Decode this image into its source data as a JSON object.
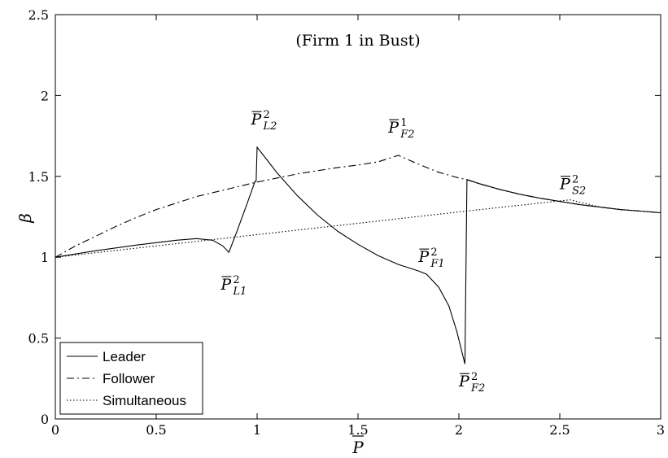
{
  "chart_data": {
    "type": "line",
    "title": "",
    "subtitle": "(Firm 1 in Bust)",
    "xlabel": "P",
    "ylabel": "β",
    "xlim": [
      0,
      3
    ],
    "ylim": [
      0,
      2.5
    ],
    "x_ticks": [
      0,
      0.5,
      1,
      1.5,
      2,
      2.5,
      3
    ],
    "x_tick_labels": [
      "0",
      "0.5",
      "1",
      "1.5",
      "2",
      "2.5",
      "3"
    ],
    "y_ticks": [
      0,
      0.5,
      1,
      1.5,
      2,
      2.5
    ],
    "y_tick_labels": [
      "0",
      "0.5",
      "1",
      "1.5",
      "2",
      "2.5"
    ],
    "grid": false,
    "legend_position": "bottom-left",
    "series": [
      {
        "name": "Leader",
        "line_style": "solid",
        "color": "#000000",
        "points": [
          [
            0,
            1.0
          ],
          [
            0.2,
            1.04
          ],
          [
            0.4,
            1.075
          ],
          [
            0.6,
            1.105
          ],
          [
            0.7,
            1.115
          ],
          [
            0.78,
            1.105
          ],
          [
            0.83,
            1.07
          ],
          [
            0.86,
            1.03
          ],
          [
            0.9,
            1.16
          ],
          [
            0.95,
            1.33
          ],
          [
            0.99,
            1.47
          ],
          [
            0.995,
            1.47
          ],
          [
            1.0,
            1.68
          ],
          [
            1.05,
            1.6
          ],
          [
            1.1,
            1.52
          ],
          [
            1.2,
            1.38
          ],
          [
            1.3,
            1.26
          ],
          [
            1.4,
            1.16
          ],
          [
            1.5,
            1.08
          ],
          [
            1.6,
            1.01
          ],
          [
            1.7,
            0.955
          ],
          [
            1.8,
            0.915
          ],
          [
            1.84,
            0.895
          ],
          [
            1.9,
            0.815
          ],
          [
            1.95,
            0.7
          ],
          [
            1.99,
            0.54
          ],
          [
            2.03,
            0.34
          ],
          [
            2.04,
            1.48
          ],
          [
            2.1,
            1.455
          ],
          [
            2.2,
            1.42
          ],
          [
            2.3,
            1.39
          ],
          [
            2.4,
            1.365
          ],
          [
            2.5,
            1.345
          ],
          [
            2.6,
            1.325
          ],
          [
            2.7,
            1.31
          ],
          [
            2.8,
            1.295
          ],
          [
            2.9,
            1.285
          ],
          [
            3.0,
            1.275
          ]
        ]
      },
      {
        "name": "Follower",
        "line_style": "dashdot",
        "color": "#000000",
        "points": [
          [
            0,
            1.0
          ],
          [
            0.1,
            1.07
          ],
          [
            0.2,
            1.13
          ],
          [
            0.3,
            1.19
          ],
          [
            0.4,
            1.245
          ],
          [
            0.5,
            1.295
          ],
          [
            0.6,
            1.335
          ],
          [
            0.7,
            1.375
          ],
          [
            0.8,
            1.405
          ],
          [
            0.9,
            1.435
          ],
          [
            1.0,
            1.465
          ],
          [
            1.1,
            1.49
          ],
          [
            1.2,
            1.515
          ],
          [
            1.3,
            1.535
          ],
          [
            1.4,
            1.555
          ],
          [
            1.5,
            1.57
          ],
          [
            1.6,
            1.59
          ],
          [
            1.7,
            1.63
          ],
          [
            1.8,
            1.575
          ],
          [
            1.9,
            1.525
          ],
          [
            2.0,
            1.49
          ],
          [
            2.04,
            1.48
          ],
          [
            2.1,
            1.455
          ],
          [
            2.2,
            1.42
          ],
          [
            2.3,
            1.39
          ],
          [
            2.4,
            1.365
          ],
          [
            2.5,
            1.345
          ],
          [
            2.6,
            1.325
          ],
          [
            2.7,
            1.31
          ],
          [
            2.8,
            1.295
          ],
          [
            2.9,
            1.285
          ],
          [
            3.0,
            1.275
          ]
        ]
      },
      {
        "name": "Simultaneous",
        "line_style": "dotted",
        "color": "#000000",
        "points": [
          [
            0,
            1.0
          ],
          [
            0.5,
            1.07
          ],
          [
            1.0,
            1.14
          ],
          [
            1.5,
            1.21
          ],
          [
            2.0,
            1.28
          ],
          [
            2.55,
            1.355
          ],
          [
            2.6,
            1.34
          ],
          [
            2.7,
            1.31
          ],
          [
            2.8,
            1.295
          ],
          [
            2.9,
            1.285
          ],
          [
            3.0,
            1.275
          ]
        ]
      }
    ],
    "annotations": [
      {
        "base": "P",
        "sup": "2",
        "sub": "L2",
        "x": 0.97,
        "y": 1.82
      },
      {
        "base": "P",
        "sup": "1",
        "sub": "F2",
        "x": 1.65,
        "y": 1.77
      },
      {
        "base": "P",
        "sup": "2",
        "sub": "S2",
        "x": 2.5,
        "y": 1.42
      },
      {
        "base": "P",
        "sup": "2",
        "sub": "L1",
        "x": 0.82,
        "y": 0.8
      },
      {
        "base": "P",
        "sup": "2",
        "sub": "F1",
        "x": 1.8,
        "y": 0.97
      },
      {
        "base": "P",
        "sup": "2",
        "sub": "F2",
        "x": 2.0,
        "y": 0.2
      }
    ]
  }
}
